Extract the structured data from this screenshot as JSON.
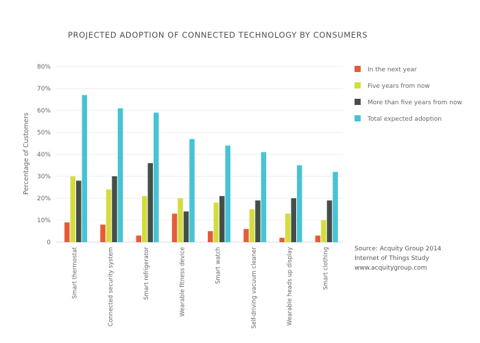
{
  "chart_data": {
    "type": "bar",
    "title": "PROJECTED ADOPTION OF CONNECTED TECHNOLOGY BY CONSUMERS",
    "xlabel": "",
    "ylabel": "Percentage of Customers",
    "ylim": [
      0,
      80
    ],
    "y_ticks": [
      {
        "value": 0,
        "label": "0"
      },
      {
        "value": 10,
        "label": "10%"
      },
      {
        "value": 20,
        "label": "20%"
      },
      {
        "value": 30,
        "label": "30%"
      },
      {
        "value": 40,
        "label": "40%"
      },
      {
        "value": 50,
        "label": "50%"
      },
      {
        "value": 60,
        "label": "60%"
      },
      {
        "value": 70,
        "label": "70%"
      },
      {
        "value": 80,
        "label": "80%"
      }
    ],
    "grid": true,
    "legend_position": "right",
    "categories": [
      "Smart thermostat",
      "Connected security system",
      "Smart refrigerator",
      "Wearable fitness device",
      "Smart watch",
      "Self-driving vacuum cleaner",
      "Wearable heads up display",
      "Smart clothing"
    ],
    "series": [
      {
        "name": "In the next year",
        "color": "#e45c3a",
        "values": [
          9,
          8,
          3,
          13,
          5,
          6,
          2,
          3
        ]
      },
      {
        "name": "Five years from now",
        "color": "#d4dd3f",
        "values": [
          30,
          24,
          21,
          20,
          18,
          15,
          13,
          10
        ]
      },
      {
        "name": "More than five years from now",
        "color": "#444f4a",
        "values": [
          28,
          30,
          36,
          14,
          21,
          19,
          20,
          19
        ]
      },
      {
        "name": "Total expected adoption",
        "color": "#47c3d4",
        "values": [
          67,
          61,
          59,
          47,
          44,
          41,
          35,
          32
        ]
      }
    ]
  },
  "source": {
    "lines": [
      "Source: Acquity Group 2014",
      "Internet of Things Study",
      "www.acquitygroup.com"
    ]
  },
  "colors": {
    "grid": "#eeeeee",
    "axis": "#d9d9d9"
  }
}
